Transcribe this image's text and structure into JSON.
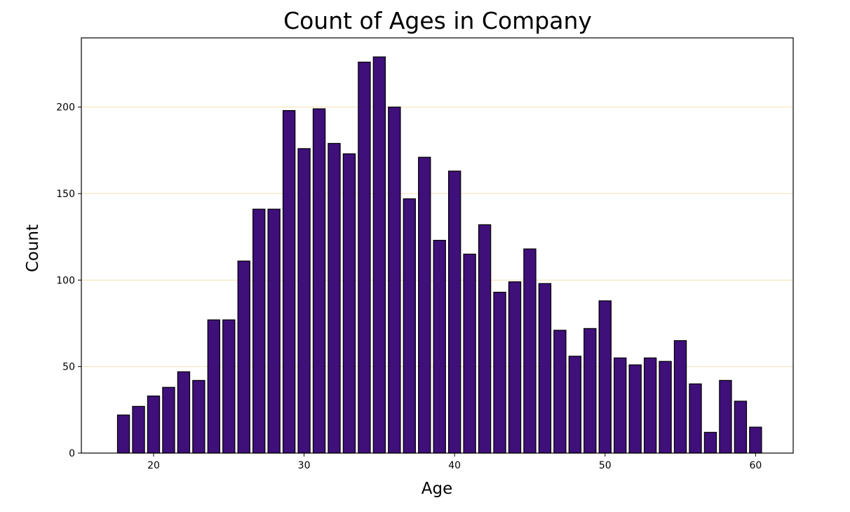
{
  "chart_data": {
    "type": "bar",
    "title": "Count of Ages in Company",
    "xlabel": "Age",
    "ylabel": "Count",
    "xlim": [
      15.2,
      62.5
    ],
    "ylim": [
      0,
      240
    ],
    "xticks": [
      20,
      30,
      40,
      50,
      60
    ],
    "yticks": [
      0,
      50,
      100,
      150,
      200
    ],
    "grid": "horizontal",
    "bar_color": "#3f0f7a",
    "grid_color": "#f5deb3",
    "x": [
      18,
      19,
      20,
      21,
      22,
      23,
      24,
      25,
      26,
      27,
      28,
      29,
      30,
      31,
      32,
      33,
      34,
      35,
      36,
      37,
      38,
      39,
      40,
      41,
      42,
      43,
      44,
      45,
      46,
      47,
      48,
      49,
      50,
      51,
      52,
      53,
      54,
      55,
      56,
      57,
      58,
      59,
      60
    ],
    "values": [
      22,
      27,
      33,
      38,
      47,
      42,
      77,
      77,
      111,
      141,
      141,
      198,
      176,
      199,
      179,
      173,
      226,
      229,
      200,
      147,
      171,
      123,
      163,
      115,
      132,
      93,
      99,
      118,
      98,
      71,
      56,
      72,
      88,
      55,
      51,
      55,
      53,
      65,
      40,
      12,
      42,
      30,
      15
    ]
  }
}
